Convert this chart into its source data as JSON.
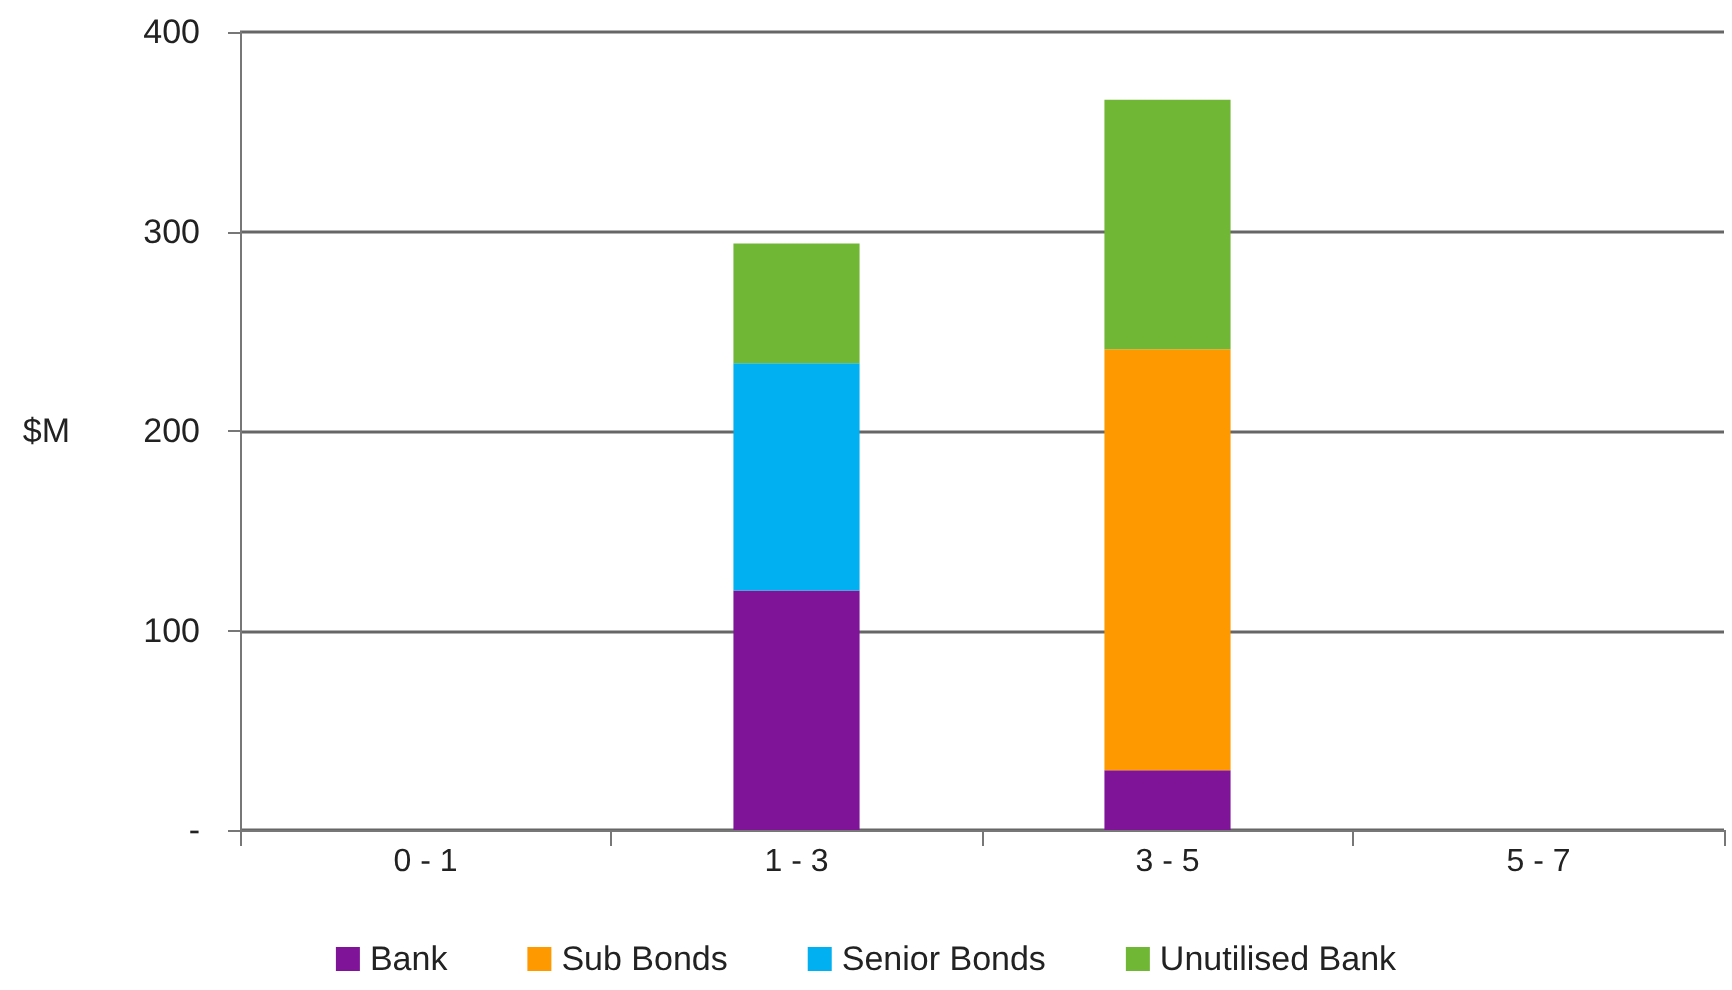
{
  "chart_data": {
    "type": "bar",
    "stacked": true,
    "ylabel": "$M",
    "categories": [
      "0 - 1",
      "1 - 3",
      "3 - 5",
      "5 - 7"
    ],
    "series": [
      {
        "name": "Bank",
        "color": "#7f1499",
        "values": [
          null,
          120,
          30,
          null
        ]
      },
      {
        "name": "Sub Bonds",
        "color": "#ff9900",
        "values": [
          null,
          null,
          211,
          null
        ]
      },
      {
        "name": "Senior Bonds",
        "color": "#00b0f0",
        "values": [
          null,
          114,
          null,
          null
        ]
      },
      {
        "name": "Unutilised Bank",
        "color": "#70b735",
        "values": [
          null,
          60,
          125,
          null
        ]
      }
    ],
    "ylim": [
      0,
      400
    ],
    "yticks": [
      {
        "value": 0,
        "label": "-"
      },
      100,
      200,
      300,
      400
    ],
    "grid": "y",
    "legend": "bottom"
  }
}
